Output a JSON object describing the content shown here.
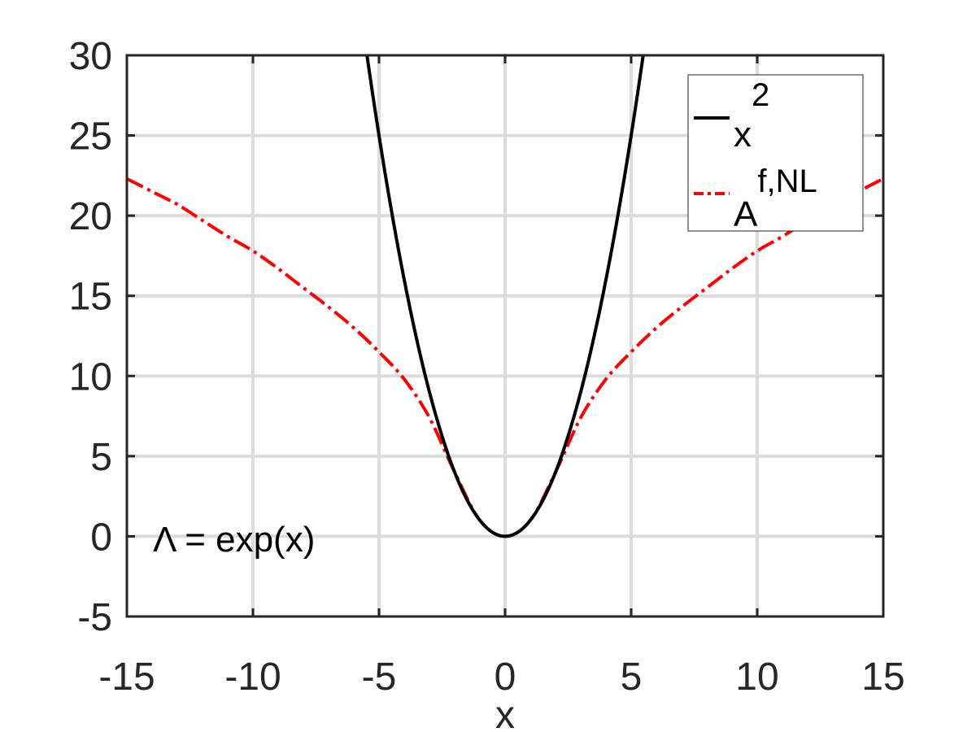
{
  "chart_data": {
    "type": "line",
    "title": "",
    "xlabel": "x",
    "ylabel": "",
    "xlim": [
      -15,
      15
    ],
    "ylim": [
      -5,
      30
    ],
    "xticks": [
      -15,
      -10,
      -5,
      0,
      5,
      10,
      15
    ],
    "yticks": [
      -5,
      0,
      5,
      10,
      15,
      20,
      25,
      30
    ],
    "x_tick_labels": [
      "-15",
      "-10",
      "-5",
      "0",
      "5",
      "10",
      "15"
    ],
    "y_tick_labels": [
      "-5",
      "0",
      "5",
      "10",
      "15",
      "20",
      "25",
      "30"
    ],
    "grid": true,
    "legend_position": "top-right",
    "annotation": "Λ = exp(x)",
    "series": [
      {
        "name": "x^2",
        "legend_base": "x",
        "legend_sup": "2",
        "style": "solid",
        "color": "#000000",
        "x": [
          -5.48,
          -5,
          -4,
          -3,
          -2,
          -1,
          0,
          1,
          2,
          3,
          4,
          5,
          5.48
        ],
        "y": [
          30,
          25,
          16,
          9,
          4,
          1,
          0,
          1,
          4,
          9,
          16,
          25,
          30
        ]
      },
      {
        "name": "A^{f,NL}",
        "legend_base": "A",
        "legend_sup": "f,NL",
        "style": "dashdot",
        "color": "#ff0000",
        "x": [
          -15,
          -14,
          -13,
          -12,
          -11,
          -10,
          -9,
          -8,
          -7,
          -6,
          -5,
          -4,
          -3,
          -2,
          -1,
          0,
          1,
          2,
          3,
          4,
          5,
          6,
          7,
          8,
          9,
          10,
          11,
          12,
          13,
          14,
          15
        ],
        "y": [
          22.3,
          21.5,
          20.7,
          19.7,
          18.7,
          17.8,
          16.7,
          15.5,
          14.3,
          13.0,
          11.5,
          9.8,
          7.4,
          4.0,
          1.0,
          0,
          1.0,
          4.0,
          7.4,
          9.8,
          11.5,
          13.0,
          14.3,
          15.5,
          16.7,
          17.8,
          18.7,
          19.7,
          20.7,
          21.5,
          22.3
        ]
      }
    ]
  }
}
